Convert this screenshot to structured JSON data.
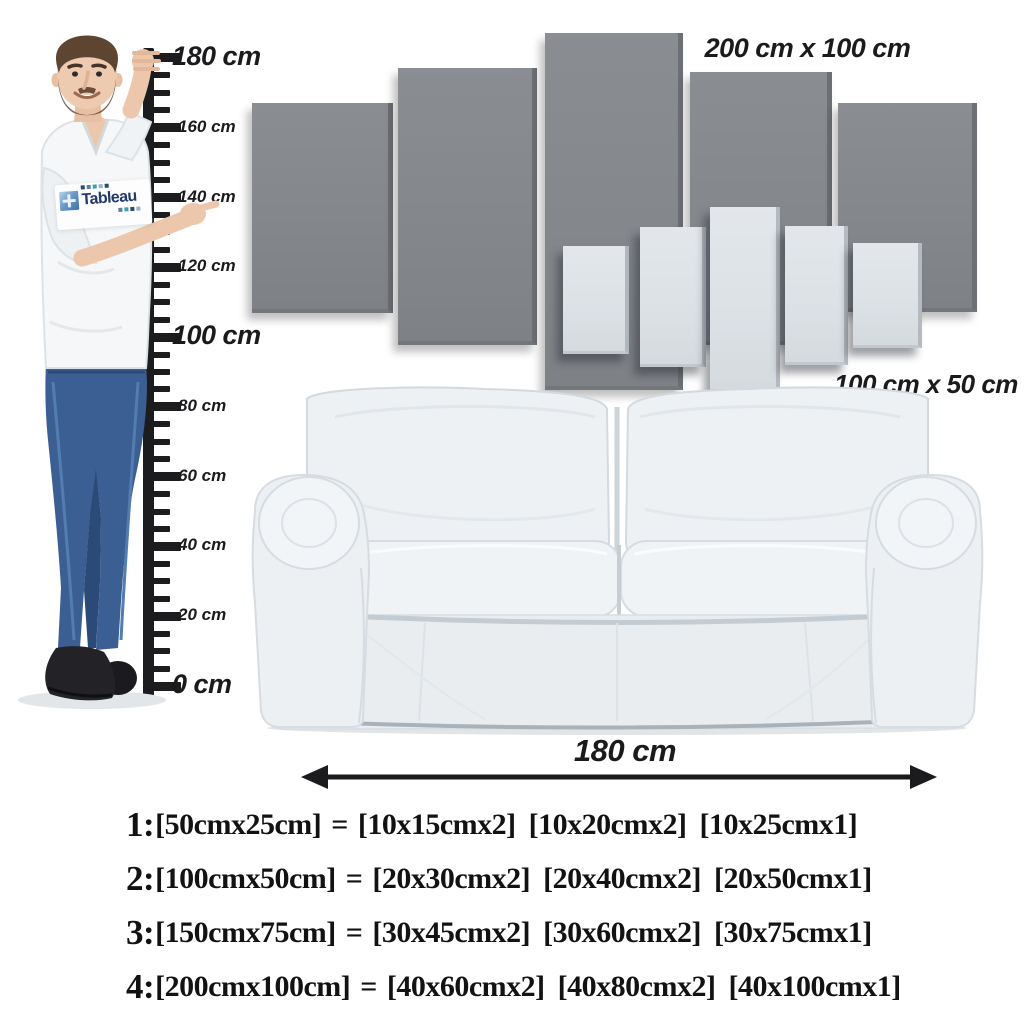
{
  "ruler": {
    "unit_labels": [
      {
        "text": "180 cm",
        "cm": 180,
        "emphasis": true
      },
      {
        "text": "160 cm",
        "cm": 160,
        "emphasis": false
      },
      {
        "text": "140 cm",
        "cm": 140,
        "emphasis": false
      },
      {
        "text": "120 cm",
        "cm": 120,
        "emphasis": false
      },
      {
        "text": "100 cm",
        "cm": 100,
        "emphasis": true
      },
      {
        "text": "80 cm",
        "cm": 80,
        "emphasis": false
      },
      {
        "text": "60 cm",
        "cm": 60,
        "emphasis": false
      },
      {
        "text": "40 cm",
        "cm": 40,
        "emphasis": false
      },
      {
        "text": "20 cm",
        "cm": 20,
        "emphasis": false
      },
      {
        "text": "0 cm",
        "cm": 0,
        "emphasis": true
      }
    ]
  },
  "canvas_sets": {
    "large": {
      "label": "200 cm x 100 cm",
      "panel_count": 5,
      "panel_color": "#85888d"
    },
    "small": {
      "label": "100 cm x 50 cm",
      "panel_count": 5,
      "panel_color": "#dde2e6"
    }
  },
  "sofa": {
    "width_label": "180 cm"
  },
  "shirt_logo": {
    "text": "Tableau"
  },
  "size_options": [
    {
      "n": "1:",
      "base": "[50cmx25cm]",
      "equals": "=",
      "breakdown": [
        "[10x15cmx2]",
        "[10x20cmx2]",
        "[10x25cmx1]"
      ]
    },
    {
      "n": "2:",
      "base": "[100cmx50cm]",
      "equals": "=",
      "breakdown": [
        "[20x30cmx2]",
        "[20x40cmx2]",
        "[20x50cmx1]"
      ]
    },
    {
      "n": "3:",
      "base": "[150cmx75cm]",
      "equals": "=",
      "breakdown": [
        "[30x45cmx2]",
        "[30x60cmx2]",
        "[30x75cmx1]"
      ]
    },
    {
      "n": "4:",
      "base": "[200cmx100cm]",
      "equals": "=",
      "breakdown": [
        "[40x60cmx2]",
        "[40x80cmx2]",
        "[40x100cmx1]"
      ]
    }
  ],
  "colors": {
    "ink": "#1c1c1e",
    "panel_dark": "#85888d",
    "panel_dark_edge": "#6c6f74",
    "panel_light": "#dde2e6",
    "panel_light_edge": "#b4bac0",
    "sofa_body": "#e9edf0",
    "denim": "#3c5f93"
  }
}
